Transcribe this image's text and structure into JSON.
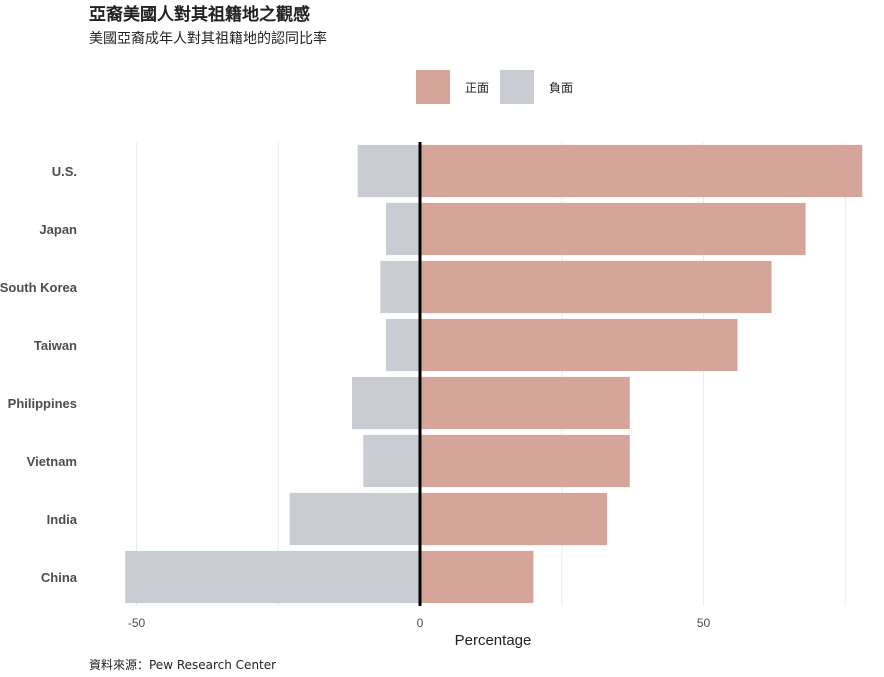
{
  "title": "亞裔美國人對其祖籍地之觀感",
  "subtitle": "美國亞裔成年人對其祖籍地的認同比率",
  "caption": "資料來源：Pew Research Center",
  "chart_data": {
    "type": "bar",
    "orientation": "horizontal-diverging",
    "categories": [
      "U.S.",
      "Japan",
      "South Korea",
      "Taiwan",
      "Philippines",
      "Vietnam",
      "India",
      "China"
    ],
    "series": [
      {
        "name": "正面",
        "color": "#d6a59a",
        "values": [
          78,
          68,
          62,
          56,
          37,
          37,
          33,
          20
        ]
      },
      {
        "name": "負面",
        "color": "#c9ccd2",
        "values": [
          -11,
          -6,
          -7,
          -6,
          -12,
          -10,
          -23,
          -52
        ]
      }
    ],
    "xlabel": "Percentage",
    "ylabel": "",
    "xlim": [
      -52,
      78
    ],
    "xticks": [
      -50,
      0,
      50
    ],
    "grid": true,
    "legend_position": "top"
  }
}
